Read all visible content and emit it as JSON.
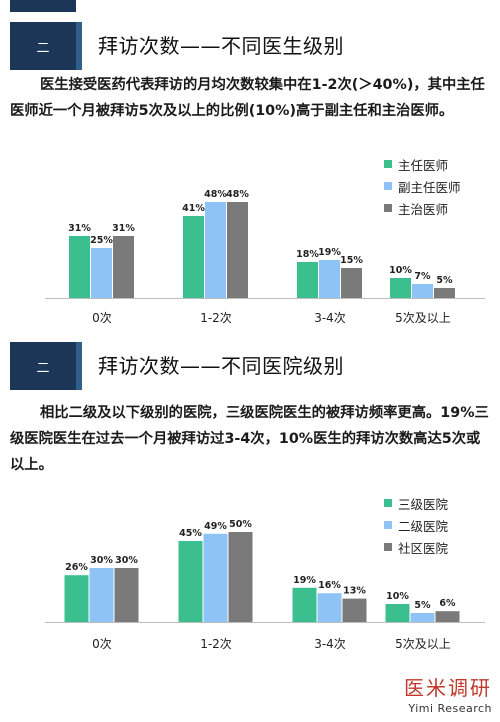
{
  "section1": {
    "badge": "二",
    "title": "拜访次数——不同医生级别",
    "para": "医生接受医药代表拜访的月均次数较集中在1-2次(＞40%)，其中主任医师近一个月被拜访5次及以上的比例(10%)高于副主任和主治医师。"
  },
  "section2": {
    "badge": "二",
    "title": "拜访次数——不同医院级别",
    "para": "相比二级及以下级别的医院，三级医院医生的被拜访频率更高。19%三级医院医生在过去一个月被拜访过3-4次，10%医生的拜访次数高达5次或以上。"
  },
  "brand": {
    "cn": "医米调研",
    "en": "Yimi Research"
  },
  "chart_data": [
    {
      "type": "bar",
      "categories": [
        "0次",
        "1-2次",
        "3-4次",
        "5次及以上"
      ],
      "series": [
        {
          "name": "主任医师",
          "values": [
            31,
            41,
            18,
            10
          ],
          "labels": [
            "31%",
            "41%",
            "18%",
            "10%"
          ],
          "color": "#3bbf8f"
        },
        {
          "name": "副主任医师",
          "values": [
            25,
            48,
            19,
            7
          ],
          "labels": [
            "25%",
            "48%",
            "19%",
            "7%"
          ],
          "color": "#8ec4f5"
        },
        {
          "name": "主治医师",
          "values": [
            31,
            48,
            15,
            5
          ],
          "labels": [
            "31%",
            "48%",
            "15%",
            "5%"
          ],
          "color": "#7a7a7a"
        }
      ],
      "ylim": [
        0,
        55
      ],
      "legend": "top-right"
    },
    {
      "type": "bar",
      "categories": [
        "0次",
        "1-2次",
        "3-4次",
        "5次及以上"
      ],
      "series": [
        {
          "name": "三级医院",
          "values": [
            26,
            45,
            19,
            10
          ],
          "labels": [
            "26%",
            "45%",
            "19%",
            "10%"
          ],
          "color": "#3bbf8f"
        },
        {
          "name": "二级医院",
          "values": [
            30,
            49,
            16,
            5
          ],
          "labels": [
            "30%",
            "49%",
            "16%",
            "5%"
          ],
          "color": "#8ec4f5"
        },
        {
          "name": "社区医院",
          "values": [
            30,
            50,
            13,
            6
          ],
          "labels": [
            "30%",
            "50%",
            "13%",
            "6%"
          ],
          "color": "#7a7a7a"
        }
      ],
      "ylim": [
        0,
        55
      ],
      "legend": "top-right"
    }
  ]
}
